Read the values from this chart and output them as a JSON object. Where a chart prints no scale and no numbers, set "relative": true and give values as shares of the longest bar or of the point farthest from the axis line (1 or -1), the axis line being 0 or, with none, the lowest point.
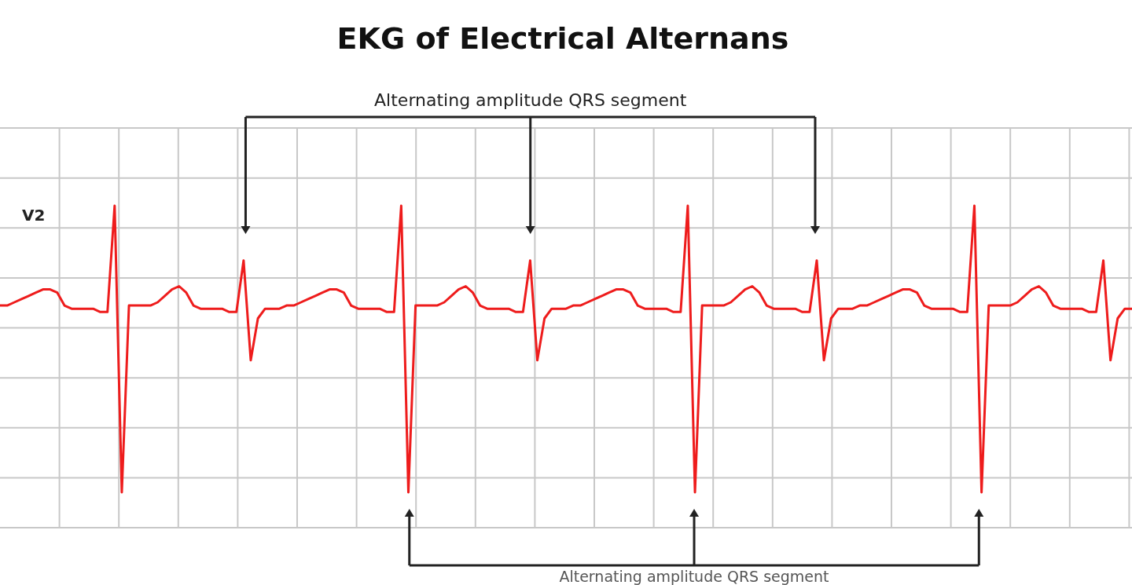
{
  "chart_data": {
    "type": "line",
    "title": "EKG of Electrical Alternans",
    "relative": true,
    "grid": true,
    "annotations": [
      "Alternating amplitude QRS segment",
      "Alternating amplitude QRS segment"
    ],
    "categories": [
      null,
      null,
      null,
      null,
      null,
      null,
      null,
      null,
      null,
      null,
      null,
      null,
      null,
      null,
      null,
      null,
      null,
      null,
      null,
      null,
      null,
      null,
      null,
      null,
      null,
      null,
      null,
      null,
      null,
      null,
      null,
      null,
      null,
      null,
      null,
      null,
      null,
      null,
      null,
      null,
      null,
      null,
      null,
      null,
      null,
      null,
      null,
      null,
      null,
      null,
      null,
      null,
      null,
      null,
      null,
      null,
      null,
      null,
      null,
      null,
      null,
      null,
      null,
      null,
      null,
      null,
      null,
      null,
      null,
      null,
      null,
      null,
      null,
      null,
      null,
      null,
      null,
      null,
      null,
      null,
      null,
      null,
      null,
      null,
      null,
      null,
      null,
      null,
      null,
      null,
      null,
      null,
      null,
      null,
      null,
      null,
      null,
      null,
      null,
      null,
      null,
      null,
      null,
      null,
      null,
      null,
      null,
      null,
      null,
      null,
      null,
      null,
      null,
      null,
      null,
      null,
      null,
      null,
      null,
      null,
      null,
      null,
      null,
      null,
      null,
      null,
      null,
      null,
      null,
      null,
      null,
      null,
      null,
      null,
      null,
      null,
      null,
      null,
      null,
      null,
      null,
      null,
      null,
      null,
      null,
      null,
      null,
      null,
      null,
      null,
      null,
      null,
      null,
      null,
      null,
      null,
      null,
      null,
      null
    ],
    "series": [
      {
        "name": "V2",
        "color": "#ee1c1c",
        "values": [
          0.69,
          0.69,
          0.7,
          0.71,
          0.72,
          0.73,
          0.74,
          0.74,
          0.73,
          0.69,
          0.68,
          0.68,
          0.68,
          0.68,
          0.67,
          0.67,
          1,
          0.11,
          0.69,
          0.69,
          0.69,
          0.69,
          0.7,
          0.72,
          0.74,
          0.75,
          0.73,
          0.69,
          0.68,
          0.68,
          0.68,
          0.68,
          0.67,
          0.67,
          0.83,
          0.52,
          0.65,
          0.68,
          0.68,
          0.68,
          0.69,
          0.69,
          0.7,
          0.71,
          0.72,
          0.73,
          0.74,
          0.74,
          0.73,
          0.69,
          0.68,
          0.68,
          0.68,
          0.68,
          0.67,
          0.67,
          1,
          0.11,
          0.69,
          0.69,
          0.69,
          0.69,
          0.7,
          0.72,
          0.74,
          0.75,
          0.73,
          0.69,
          0.68,
          0.68,
          0.68,
          0.68,
          0.67,
          0.67,
          0.83,
          0.52,
          0.65,
          0.68,
          0.68,
          0.68,
          0.69,
          0.69,
          0.7,
          0.71,
          0.72,
          0.73,
          0.74,
          0.74,
          0.73,
          0.69,
          0.68,
          0.68,
          0.68,
          0.68,
          0.67,
          0.67,
          1,
          0.11,
          0.69,
          0.69,
          0.69,
          0.69,
          0.7,
          0.72,
          0.74,
          0.75,
          0.73,
          0.69,
          0.68,
          0.68,
          0.68,
          0.68,
          0.67,
          0.67,
          0.83,
          0.52,
          0.65,
          0.68,
          0.68,
          0.68,
          0.69,
          0.69,
          0.7,
          0.71,
          0.72,
          0.73,
          0.74,
          0.74,
          0.73,
          0.69,
          0.68,
          0.68,
          0.68,
          0.68,
          0.67,
          0.67,
          1,
          0.11,
          0.69,
          0.69,
          0.69,
          0.69,
          0.7,
          0.72,
          0.74,
          0.75,
          0.73,
          0.69,
          0.68,
          0.68,
          0.68,
          0.68,
          0.67,
          0.67,
          0.83,
          0.52,
          0.65,
          0.68,
          0.68
        ]
      }
    ]
  }
}
